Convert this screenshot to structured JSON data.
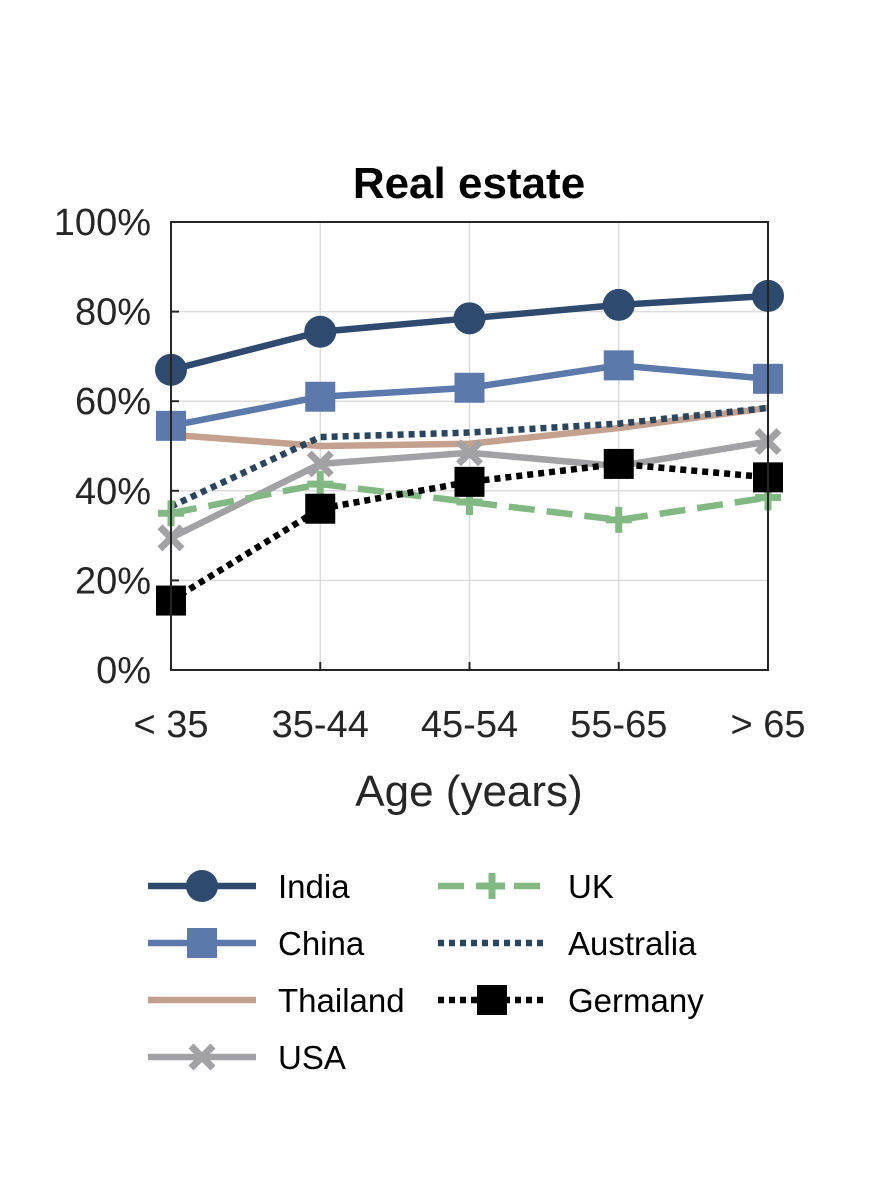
{
  "chart_data": {
    "type": "line",
    "title": "Real estate",
    "xlabel": "Age (years)",
    "ylabel": "",
    "categories": [
      "< 35",
      "35-44",
      "45-54",
      "55-65",
      "> 65"
    ],
    "ylim": [
      0,
      100
    ],
    "yticks": [
      0,
      20,
      40,
      60,
      80,
      100
    ],
    "ytick_labels": [
      "0%",
      "20%",
      "40%",
      "60%",
      "80%",
      "100%"
    ],
    "grid": true,
    "legend_position": "bottom",
    "series": [
      {
        "name": "India",
        "values": [
          67,
          75.5,
          78.5,
          81.5,
          83.5
        ],
        "color": "#2e4a6e",
        "marker": "circle",
        "line": "solid"
      },
      {
        "name": "China",
        "values": [
          54.5,
          61,
          63,
          68,
          65
        ],
        "color": "#5b79ab",
        "marker": "square",
        "line": "solid"
      },
      {
        "name": "Thailand",
        "values": [
          52.5,
          50,
          50.5,
          54,
          58.5
        ],
        "color": "#c4a08e",
        "marker": "none",
        "line": "solid"
      },
      {
        "name": "USA",
        "values": [
          29.5,
          46,
          48.5,
          45.5,
          51
        ],
        "color": "#a2a2a4",
        "marker": "x",
        "line": "solid"
      },
      {
        "name": "UK",
        "values": [
          35,
          41.5,
          37.5,
          33.5,
          38.5
        ],
        "color": "#82b882",
        "marker": "plus",
        "line": "dashed"
      },
      {
        "name": "Australia",
        "values": [
          36.5,
          52,
          53,
          55,
          58.5
        ],
        "color": "#2a4560",
        "marker": "none",
        "line": "dotted"
      },
      {
        "name": "Germany",
        "values": [
          15.5,
          36,
          42,
          46,
          43
        ],
        "color": "#000000",
        "marker": "square",
        "line": "dotted"
      }
    ]
  }
}
